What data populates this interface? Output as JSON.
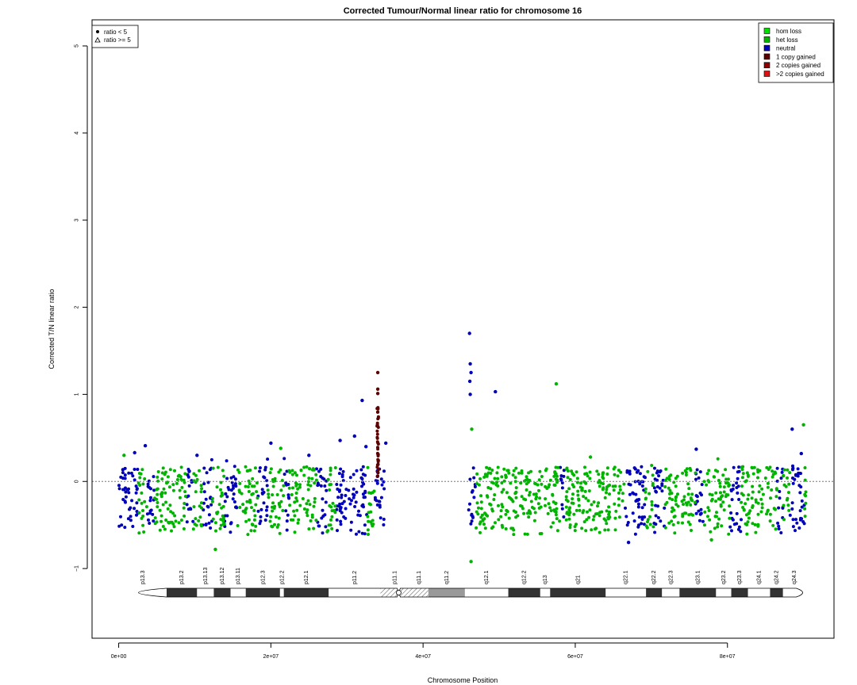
{
  "chart_data": {
    "type": "scatter",
    "title": "Corrected Tumour/Normal linear ratio for chromosome  16",
    "xlabel": "Chromosome Position",
    "ylabel": "Corrected T/N linear ratio",
    "xlim": [
      -3500000,
      94000000
    ],
    "ylim": [
      -1.8,
      5.3
    ],
    "x_ticks": [
      0,
      20000000,
      40000000,
      60000000,
      80000000
    ],
    "x_tick_labels": [
      "0e+00",
      "2e+07",
      "4e+07",
      "6e+07",
      "8e+07"
    ],
    "y_ticks": [
      -1,
      0,
      1,
      2,
      3,
      4,
      5
    ],
    "y_tick_labels": [
      "−1",
      "0",
      "1",
      "2",
      "3",
      "4",
      "5"
    ],
    "reference_line_y": 0,
    "shape_legend": {
      "position": "top-left",
      "items": [
        {
          "symbol": "dot",
          "label": "ratio < 5"
        },
        {
          "symbol": "triangle",
          "label": "ratio >= 5"
        }
      ]
    },
    "legend": {
      "position": "top-right",
      "items": [
        {
          "label": "hom loss",
          "color": "#00e000"
        },
        {
          "label": "het loss",
          "color": "#00b400"
        },
        {
          "label": "neutral",
          "color": "#0000b8"
        },
        {
          "label": "1 copy gained",
          "color": "#5a0000"
        },
        {
          "label": "2 copies gained",
          "color": "#8c0000"
        },
        {
          "label": ">2 copies gained",
          "color": "#e01010"
        }
      ]
    },
    "series": [
      {
        "name": "neutral",
        "color": "#0000b8",
        "segments": [
          [
            0,
            2600000
          ],
          [
            3700000,
            4700000
          ],
          [
            8800000,
            9800000
          ],
          [
            11000000,
            12300000
          ],
          [
            13900000,
            15600000
          ],
          [
            18300000,
            19600000
          ],
          [
            21700000,
            22400000
          ],
          [
            26000000,
            27300000
          ],
          [
            28500000,
            32600000
          ],
          [
            33600000,
            35000000
          ],
          [
            46000000,
            46900000
          ],
          [
            58000000,
            58600000
          ],
          [
            66500000,
            69200000
          ],
          [
            70300000,
            71800000
          ],
          [
            75800000,
            76900000
          ],
          [
            80300000,
            81800000
          ],
          [
            86500000,
            87300000
          ],
          [
            88200000,
            90100000
          ]
        ],
        "outliers": [
          [
            3500000,
            0.41
          ],
          [
            2100000,
            0.33
          ],
          [
            10300000,
            0.3
          ],
          [
            20000000,
            0.44
          ],
          [
            25000000,
            0.3
          ],
          [
            29100000,
            0.47
          ],
          [
            31000000,
            0.52
          ],
          [
            32000000,
            0.93
          ],
          [
            32500000,
            0.4
          ],
          [
            35100000,
            0.44
          ],
          [
            46100000,
            1.7
          ],
          [
            46200000,
            1.35
          ],
          [
            46300000,
            1.25
          ],
          [
            46150000,
            1.15
          ],
          [
            46200000,
            1.0
          ],
          [
            49500000,
            1.03
          ],
          [
            67000000,
            -0.7
          ],
          [
            75900000,
            0.37
          ],
          [
            88500000,
            0.6
          ],
          [
            89700000,
            0.32
          ]
        ]
      },
      {
        "name": "het loss",
        "color": "#00b400",
        "segments": [
          [
            2600000,
            3700000
          ],
          [
            4700000,
            8800000
          ],
          [
            9800000,
            11000000
          ],
          [
            12300000,
            13900000
          ],
          [
            15600000,
            18300000
          ],
          [
            19600000,
            21700000
          ],
          [
            22400000,
            26000000
          ],
          [
            27300000,
            28500000
          ],
          [
            32600000,
            33600000
          ],
          [
            46900000,
            58000000
          ],
          [
            58600000,
            66500000
          ],
          [
            69200000,
            70300000
          ],
          [
            71800000,
            75800000
          ],
          [
            76900000,
            80300000
          ],
          [
            81800000,
            86500000
          ],
          [
            87300000,
            88200000
          ],
          [
            90100000,
            90300000
          ]
        ],
        "outliers": [
          [
            700000,
            0.3
          ],
          [
            12700000,
            -0.78
          ],
          [
            21300000,
            0.38
          ],
          [
            46400000,
            0.6
          ],
          [
            46300000,
            -0.92
          ],
          [
            57500000,
            1.12
          ],
          [
            62000000,
            0.28
          ],
          [
            77900000,
            -0.67
          ],
          [
            90000000,
            0.65
          ]
        ]
      },
      {
        "name": "1 copy gained",
        "color": "#5a0000",
        "segments": [
          [
            33950000,
            34150000
          ]
        ],
        "outliers": [
          [
            34050000,
            1.25
          ],
          [
            34050000,
            1.06
          ],
          [
            34050000,
            1.01
          ]
        ]
      }
    ],
    "ideogram": {
      "start": 0,
      "end": 90300000,
      "centromere": 36800000,
      "bands": [
        {
          "name": "p13.3",
          "start": 0,
          "end": 6300000,
          "stain": "gneg"
        },
        {
          "name": "p13.2",
          "start": 6300000,
          "end": 10300000,
          "stain": "gpos"
        },
        {
          "name": "p13.13",
          "start": 10300000,
          "end": 12500000,
          "stain": "gneg"
        },
        {
          "name": "p13.12",
          "start": 12500000,
          "end": 14700000,
          "stain": "gpos"
        },
        {
          "name": "p13.11",
          "start": 14700000,
          "end": 16700000,
          "stain": "gneg"
        },
        {
          "name": "p12.3",
          "start": 16700000,
          "end": 21200000,
          "stain": "gpos"
        },
        {
          "name": "p12.2",
          "start": 21200000,
          "end": 21700000,
          "stain": "gneg"
        },
        {
          "name": "p12.1",
          "start": 21700000,
          "end": 27600000,
          "stain": "gpos"
        },
        {
          "name": "p11.2",
          "start": 27600000,
          "end": 34400000,
          "stain": "gneg"
        },
        {
          "name": "p11.1",
          "start": 34400000,
          "end": 38200000,
          "stain": "gvar"
        },
        {
          "name": "q11.1",
          "start": 38200000,
          "end": 40700000,
          "stain": "gvar"
        },
        {
          "name": "q11.2",
          "start": 40700000,
          "end": 45500000,
          "stain": "gheter"
        },
        {
          "name": "q12.1",
          "start": 45500000,
          "end": 51200000,
          "stain": "gneg"
        },
        {
          "name": "q12.2",
          "start": 51200000,
          "end": 55400000,
          "stain": "gpos"
        },
        {
          "name": "q13",
          "start": 55400000,
          "end": 56700000,
          "stain": "gneg"
        },
        {
          "name": "q21",
          "start": 56700000,
          "end": 64000000,
          "stain": "gpos"
        },
        {
          "name": "q22.1",
          "start": 64000000,
          "end": 69300000,
          "stain": "gneg"
        },
        {
          "name": "q22.2",
          "start": 69300000,
          "end": 71400000,
          "stain": "gpos"
        },
        {
          "name": "q22.3",
          "start": 71400000,
          "end": 73700000,
          "stain": "gneg"
        },
        {
          "name": "q23.1",
          "start": 73700000,
          "end": 78500000,
          "stain": "gpos"
        },
        {
          "name": "q23.2",
          "start": 78500000,
          "end": 80500000,
          "stain": "gneg"
        },
        {
          "name": "q23.3",
          "start": 80500000,
          "end": 82700000,
          "stain": "gpos"
        },
        {
          "name": "q24.1",
          "start": 82700000,
          "end": 85600000,
          "stain": "gneg"
        },
        {
          "name": "q24.2",
          "start": 85600000,
          "end": 87300000,
          "stain": "gpos"
        },
        {
          "name": "q24.3",
          "start": 87300000,
          "end": 90300000,
          "stain": "gneg"
        }
      ]
    }
  }
}
